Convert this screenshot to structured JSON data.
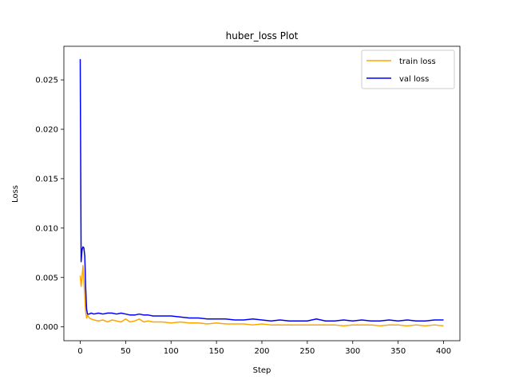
{
  "chart_data": {
    "type": "line",
    "title": "huber_loss Plot",
    "xlabel": "Step",
    "ylabel": "Loss",
    "xlim": [
      -18,
      418
    ],
    "ylim": [
      -0.0014,
      0.0284
    ],
    "xticks": [
      0,
      50,
      100,
      150,
      200,
      250,
      300,
      350,
      400
    ],
    "yticks": [
      0.0,
      0.005,
      0.01,
      0.015,
      0.02,
      0.025
    ],
    "ytick_labels": [
      "0.000",
      "0.005",
      "0.010",
      "0.015",
      "0.020",
      "0.025"
    ],
    "grid": false,
    "legend_position": "top-right",
    "series": [
      {
        "name": "train loss",
        "color": "#ffa500",
        "x": [
          0,
          1,
          2,
          3,
          4,
          5,
          6,
          7,
          8,
          10,
          12,
          15,
          20,
          25,
          30,
          35,
          40,
          45,
          50,
          55,
          60,
          65,
          70,
          75,
          80,
          90,
          100,
          110,
          120,
          130,
          140,
          150,
          160,
          170,
          180,
          190,
          200,
          210,
          220,
          230,
          240,
          250,
          260,
          270,
          280,
          290,
          300,
          310,
          320,
          330,
          340,
          350,
          360,
          370,
          380,
          390,
          400
        ],
        "values": [
          0.0052,
          0.0041,
          0.005,
          0.0062,
          0.0048,
          0.003,
          0.0015,
          0.0009,
          0.0012,
          0.0009,
          0.0008,
          0.0007,
          0.0006,
          0.0007,
          0.0005,
          0.0007,
          0.0006,
          0.0005,
          0.0008,
          0.0005,
          0.0006,
          0.0008,
          0.0005,
          0.0006,
          0.0005,
          0.0005,
          0.0004,
          0.0005,
          0.0004,
          0.0004,
          0.0003,
          0.0004,
          0.0003,
          0.0003,
          0.0003,
          0.0002,
          0.0003,
          0.0002,
          0.0002,
          0.0002,
          0.0002,
          0.0002,
          0.0002,
          0.0002,
          0.0002,
          0.0001,
          0.0002,
          0.0002,
          0.0002,
          0.0001,
          0.0002,
          0.0002,
          0.0001,
          0.0002,
          0.0001,
          0.0002,
          0.0001
        ]
      },
      {
        "name": "val loss",
        "color": "#0000ff",
        "x": [
          0,
          1,
          2,
          3,
          4,
          5,
          6,
          7,
          8,
          10,
          12,
          15,
          20,
          25,
          30,
          35,
          40,
          45,
          50,
          55,
          60,
          65,
          70,
          75,
          80,
          90,
          100,
          110,
          120,
          130,
          140,
          150,
          160,
          170,
          180,
          190,
          200,
          210,
          220,
          230,
          240,
          250,
          260,
          270,
          280,
          290,
          300,
          310,
          320,
          330,
          340,
          350,
          360,
          370,
          380,
          390,
          400
        ],
        "values": [
          0.0271,
          0.0066,
          0.0078,
          0.0081,
          0.008,
          0.0072,
          0.004,
          0.0018,
          0.0013,
          0.0013,
          0.0014,
          0.0013,
          0.0014,
          0.0013,
          0.0014,
          0.0014,
          0.0013,
          0.0014,
          0.0013,
          0.0012,
          0.0012,
          0.0013,
          0.0012,
          0.0012,
          0.0011,
          0.0011,
          0.0011,
          0.001,
          0.0009,
          0.0009,
          0.0008,
          0.0008,
          0.0008,
          0.0007,
          0.0007,
          0.0008,
          0.0007,
          0.0006,
          0.0007,
          0.0006,
          0.0006,
          0.0006,
          0.0008,
          0.0006,
          0.0006,
          0.0007,
          0.0006,
          0.0007,
          0.0006,
          0.0006,
          0.0007,
          0.0006,
          0.0007,
          0.0006,
          0.0006,
          0.0007,
          0.0007
        ]
      }
    ]
  }
}
